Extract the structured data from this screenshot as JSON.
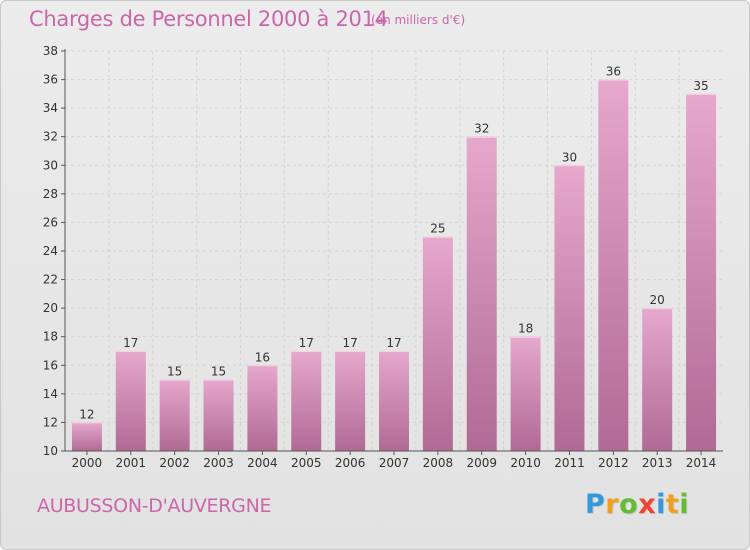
{
  "header": {
    "title": "Charges de Personnel 2000 à 2014",
    "subtitle": "(en milliers d'€)"
  },
  "footer": {
    "city": "AUBUSSON-D'AUVERGNE"
  },
  "logo": {
    "letters": [
      {
        "char": "P",
        "color": "#3399dd"
      },
      {
        "char": "r",
        "color": "#f0a020"
      },
      {
        "char": "o",
        "color": "#66bb33"
      },
      {
        "char": "x",
        "color": "#ee4433"
      },
      {
        "char": "i",
        "color": "#3399dd"
      },
      {
        "char": "t",
        "color": "#f0a020"
      },
      {
        "char": "i",
        "color": "#66bb33"
      }
    ]
  },
  "colors": {
    "accent": "#cc66aa",
    "bar_top": "#e6a8cc",
    "bar_bottom": "#b06a95",
    "axis": "#555555",
    "grid": "#d4d4d4"
  },
  "chart_data": {
    "type": "bar",
    "categories": [
      "2000",
      "2001",
      "2002",
      "2003",
      "2004",
      "2005",
      "2006",
      "2007",
      "2008",
      "2009",
      "2010",
      "2011",
      "2012",
      "2013",
      "2014"
    ],
    "values": [
      12,
      17,
      15,
      15,
      16,
      17,
      17,
      17,
      25,
      32,
      18,
      30,
      36,
      20,
      35
    ],
    "title": "Charges de Personnel 2000 à 2014",
    "ylim": [
      10,
      38
    ],
    "yticks": [
      10,
      12,
      14,
      16,
      18,
      20,
      22,
      24,
      26,
      28,
      30,
      32,
      34,
      36,
      38
    ],
    "grid": true,
    "data_labels": true
  }
}
